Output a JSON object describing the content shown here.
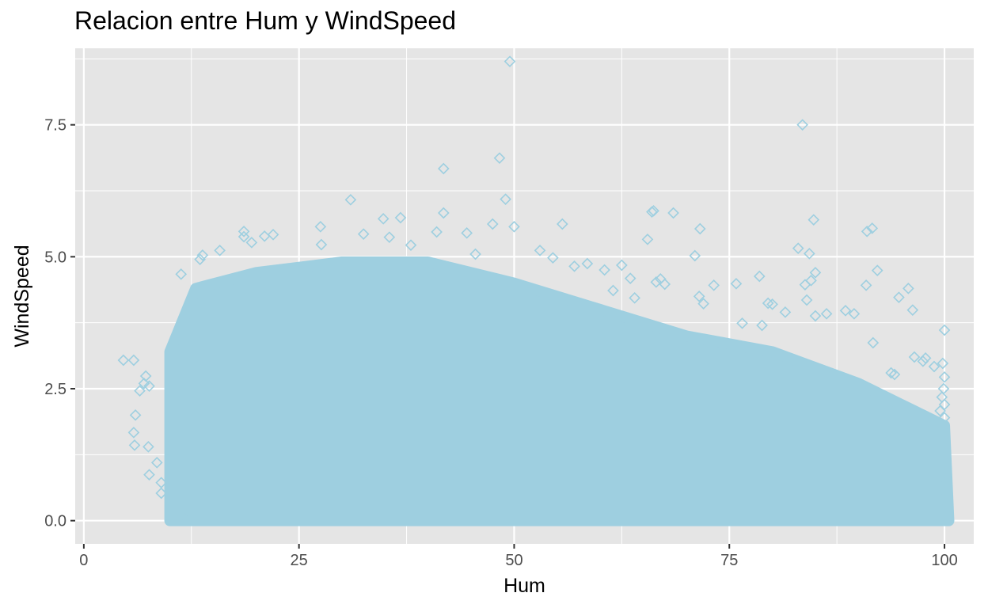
{
  "chart_data": {
    "type": "scatter",
    "title": "Relacion entre Hum y WindSpeed",
    "xlabel": "Hum",
    "ylabel": "WindSpeed",
    "xlim": [
      -1,
      103.4
    ],
    "ylim": [
      -0.44,
      8.95
    ],
    "x_ticks": [
      0,
      25,
      50,
      75,
      100
    ],
    "x_tick_labels": [
      "0",
      "25",
      "50",
      "75",
      "100"
    ],
    "y_ticks": [
      0.0,
      2.5,
      5.0,
      7.5
    ],
    "y_tick_labels": [
      "0.0",
      "2.5",
      "5.0",
      "7.5"
    ],
    "grid": true,
    "legend": "none",
    "colors": {
      "points": "#9ecfe0",
      "panel": "#e5e5e5",
      "grid": "#ffffff",
      "text": "#4d4d4d"
    },
    "marker": "open-diamond",
    "dense_region": {
      "x_range": [
        10,
        100.5
      ],
      "y_range": [
        0.0,
        4.9
      ],
      "description_points": [
        [
          10,
          3.2
        ],
        [
          13,
          4.4
        ],
        [
          20,
          4.7
        ],
        [
          30,
          4.9
        ],
        [
          40,
          4.9
        ],
        [
          50,
          4.5
        ],
        [
          60,
          4.0
        ],
        [
          70,
          3.5
        ],
        [
          80,
          3.2
        ],
        [
          90,
          2.6
        ],
        [
          100,
          1.8
        ]
      ]
    },
    "points": [
      [
        49.5,
        8.7
      ],
      [
        83.5,
        7.5
      ],
      [
        41.8,
        6.67
      ],
      [
        48.3,
        6.87
      ],
      [
        31.0,
        6.08
      ],
      [
        49.0,
        6.09
      ],
      [
        41.8,
        5.83
      ],
      [
        34.8,
        5.72
      ],
      [
        36.8,
        5.74
      ],
      [
        27.5,
        5.57
      ],
      [
        50.0,
        5.57
      ],
      [
        55.6,
        5.62
      ],
      [
        47.5,
        5.62
      ],
      [
        66.0,
        5.85
      ],
      [
        66.2,
        5.87
      ],
      [
        68.5,
        5.83
      ],
      [
        84.8,
        5.7
      ],
      [
        71.6,
        5.53
      ],
      [
        91.0,
        5.48
      ],
      [
        91.6,
        5.54
      ],
      [
        65.5,
        5.33
      ],
      [
        83.0,
        5.16
      ],
      [
        84.3,
        5.06
      ],
      [
        71.0,
        5.02
      ],
      [
        92.2,
        4.74
      ],
      [
        95.8,
        4.4
      ],
      [
        94.7,
        4.23
      ],
      [
        90.9,
        4.46
      ],
      [
        85.0,
        4.7
      ],
      [
        84.5,
        4.55
      ],
      [
        83.8,
        4.47
      ],
      [
        78.5,
        4.63
      ],
      [
        75.8,
        4.49
      ],
      [
        84.0,
        4.18
      ],
      [
        86.3,
        3.92
      ],
      [
        85.0,
        3.88
      ],
      [
        96.3,
        3.99
      ],
      [
        100.0,
        3.61
      ],
      [
        89.5,
        3.92
      ],
      [
        88.5,
        3.98
      ],
      [
        91.7,
        3.37
      ],
      [
        4.6,
        3.04
      ],
      [
        5.8,
        3.04
      ],
      [
        6.5,
        2.46
      ],
      [
        7.0,
        2.6
      ],
      [
        7.2,
        2.74
      ],
      [
        7.6,
        2.55
      ],
      [
        6.0,
        2.0
      ],
      [
        5.8,
        1.67
      ],
      [
        5.9,
        1.43
      ],
      [
        7.5,
        1.4
      ],
      [
        7.6,
        0.87
      ],
      [
        8.5,
        1.1
      ],
      [
        9.0,
        0.72
      ],
      [
        9.0,
        0.52
      ],
      [
        11.4,
        0.08
      ],
      [
        11.3,
        4.67
      ],
      [
        13.8,
        5.03
      ],
      [
        13.5,
        4.95
      ],
      [
        15.8,
        5.12
      ],
      [
        18.6,
        5.48
      ],
      [
        18.6,
        5.38
      ],
      [
        19.5,
        5.27
      ],
      [
        22.0,
        5.42
      ],
      [
        21.0,
        5.39
      ],
      [
        27.6,
        5.23
      ],
      [
        32.5,
        5.43
      ],
      [
        35.5,
        5.37
      ],
      [
        38.0,
        5.22
      ],
      [
        41.0,
        5.47
      ],
      [
        44.5,
        5.45
      ],
      [
        45.5,
        5.05
      ],
      [
        53.0,
        5.12
      ],
      [
        54.5,
        4.98
      ],
      [
        57.0,
        4.82
      ],
      [
        58.5,
        4.87
      ],
      [
        62.5,
        4.84
      ],
      [
        60.5,
        4.75
      ],
      [
        99.8,
        2.98
      ],
      [
        98.8,
        2.92
      ],
      [
        97.5,
        3.02
      ],
      [
        96.5,
        3.1
      ],
      [
        97.8,
        3.08
      ],
      [
        94.2,
        2.77
      ],
      [
        93.8,
        2.8
      ],
      [
        100.0,
        2.72
      ],
      [
        99.9,
        2.5
      ],
      [
        99.7,
        2.34
      ],
      [
        100.0,
        2.2
      ],
      [
        99.5,
        2.08
      ],
      [
        100.0,
        1.95
      ],
      [
        76.5,
        3.74
      ],
      [
        78.8,
        3.7
      ],
      [
        80.0,
        4.1
      ],
      [
        79.5,
        4.12
      ],
      [
        81.5,
        3.95
      ],
      [
        73.2,
        4.46
      ],
      [
        72.0,
        4.11
      ],
      [
        71.5,
        4.25
      ],
      [
        64.0,
        4.22
      ],
      [
        61.5,
        4.36
      ],
      [
        63.5,
        4.59
      ],
      [
        67.0,
        4.58
      ],
      [
        66.5,
        4.52
      ],
      [
        67.5,
        4.48
      ]
    ]
  }
}
